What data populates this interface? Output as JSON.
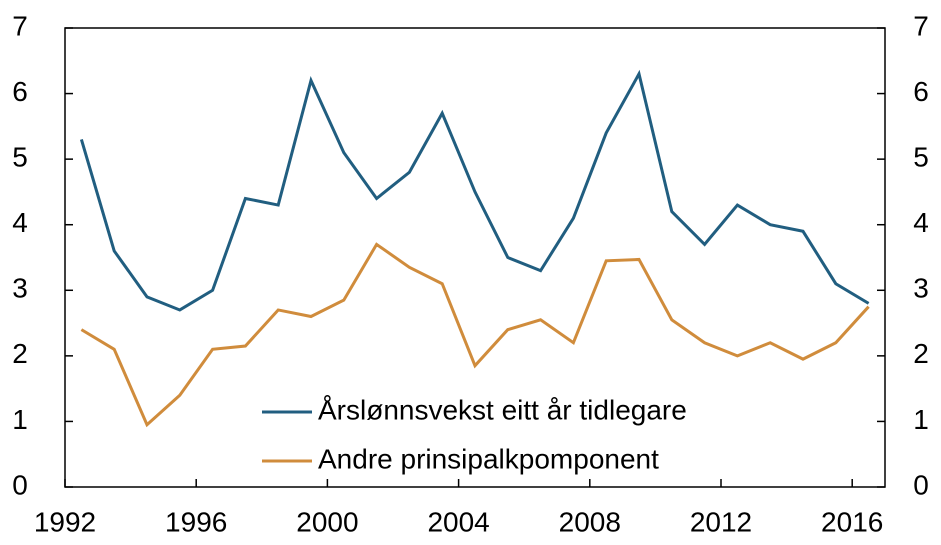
{
  "chart_data": {
    "type": "line",
    "x": [
      1992.5,
      1993.5,
      1994.5,
      1995.5,
      1996.5,
      1997.5,
      1998.5,
      1999.5,
      2000.5,
      2001.5,
      2002.5,
      2003.5,
      2004.5,
      2005.5,
      2006.5,
      2007.5,
      2008.5,
      2009.5,
      2010.5,
      2011.5,
      2012.5,
      2013.5,
      2014.5,
      2015.5,
      2016.5
    ],
    "series": [
      {
        "name": "Årslønnsvekst eitt år tidlegare",
        "color": "#215e80",
        "values": [
          5.3,
          3.6,
          2.9,
          2.7,
          3.0,
          4.4,
          4.3,
          6.2,
          5.1,
          4.4,
          4.8,
          5.7,
          4.5,
          3.5,
          3.3,
          4.1,
          5.4,
          6.3,
          4.2,
          3.7,
          4.3,
          4.0,
          3.9,
          3.1,
          2.8
        ]
      },
      {
        "name": "Andre prinsipalkpomponent",
        "color": "#d08c3c",
        "values": [
          2.4,
          2.1,
          0.95,
          1.4,
          2.1,
          2.15,
          2.7,
          2.6,
          2.85,
          3.7,
          3.35,
          3.1,
          1.85,
          2.4,
          2.55,
          2.2,
          3.45,
          3.47,
          2.55,
          2.2,
          2.0,
          2.2,
          1.95,
          2.2,
          2.75
        ]
      }
    ],
    "xlim": [
      1992,
      2017
    ],
    "xticks": [
      1992,
      1996,
      2000,
      2004,
      2008,
      2012,
      2016
    ],
    "ylim": [
      0,
      7
    ],
    "yticks": [
      0,
      1,
      2,
      3,
      4,
      5,
      6,
      7
    ],
    "y2lim": [
      0,
      7
    ],
    "y2ticks": [
      0,
      1,
      2,
      3,
      4,
      5,
      6,
      7
    ],
    "legend": "lower-center"
  }
}
